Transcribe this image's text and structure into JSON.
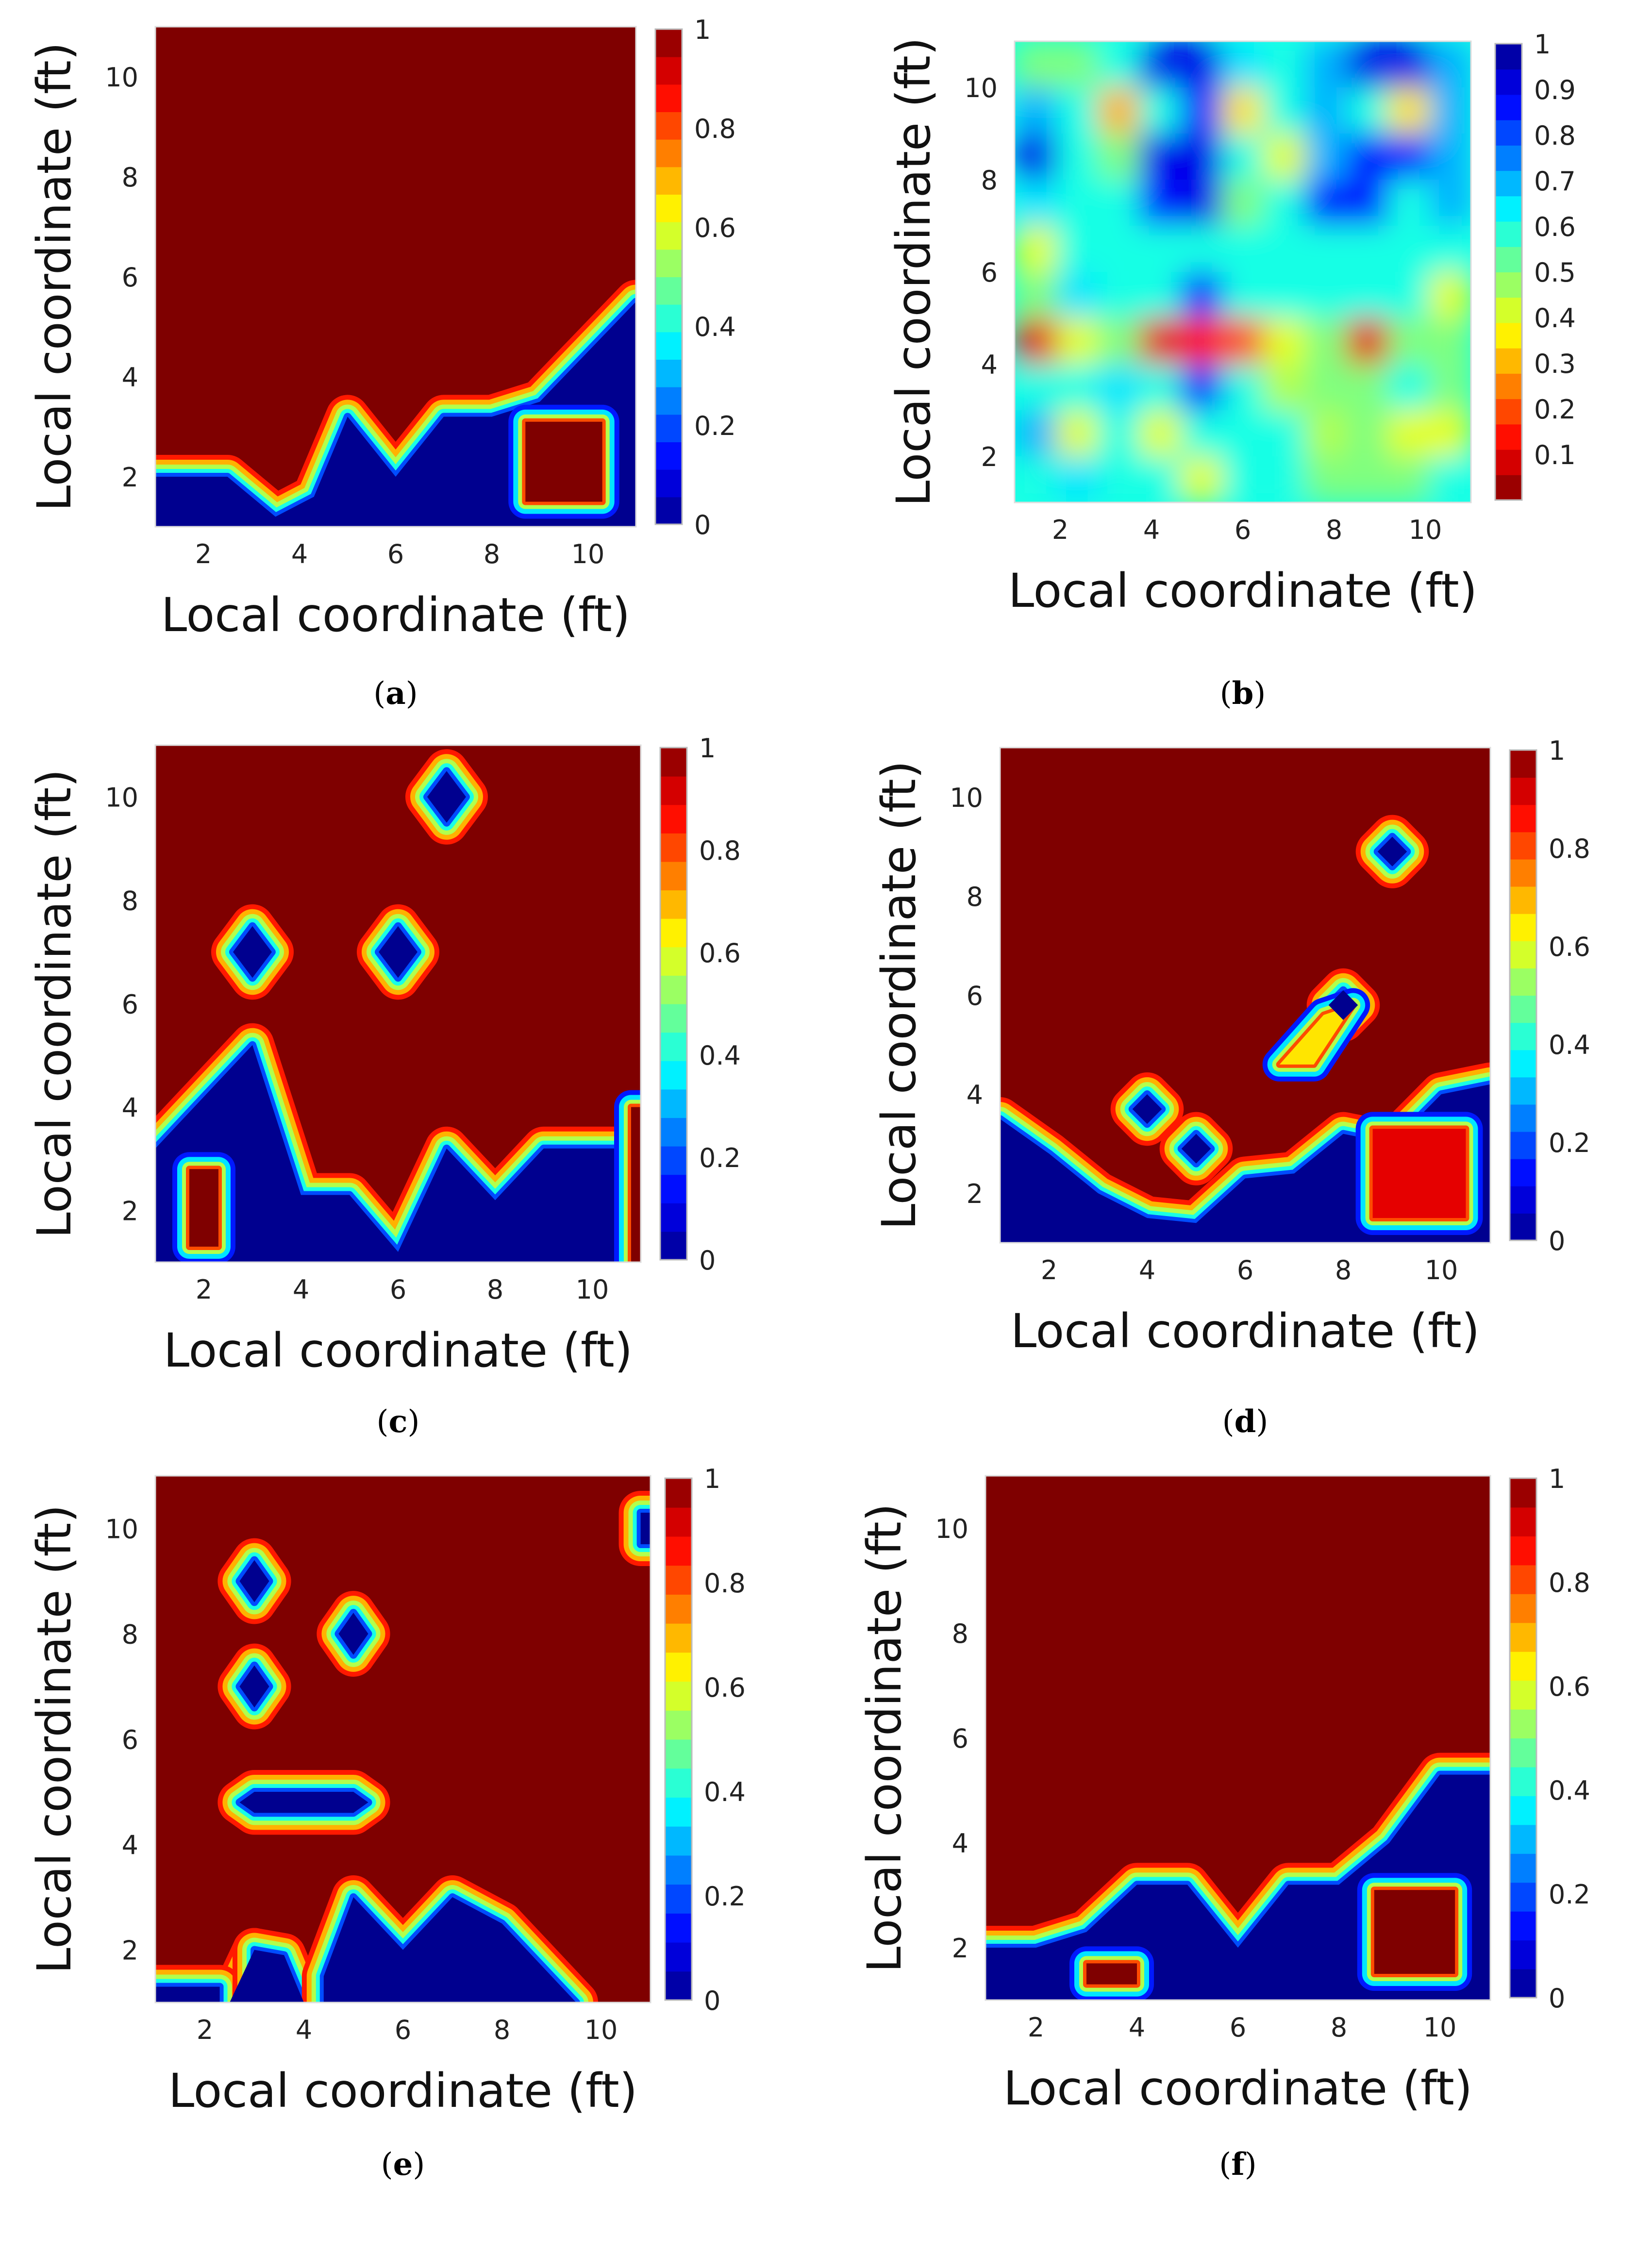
{
  "figure": {
    "panel_count": 6
  },
  "colormaps": {
    "jet": [
      "#00008f",
      "#0000ff",
      "#007fff",
      "#00ffff",
      "#7fff7f",
      "#ffff00",
      "#ff7f00",
      "#ff0000",
      "#7f0000"
    ],
    "jet_reversed": [
      "#7f0000",
      "#ff0000",
      "#ff7f00",
      "#ffff00",
      "#7fff7f",
      "#00ffff",
      "#007fff",
      "#0000ff",
      "#00008f"
    ]
  },
  "chart_data": [
    {
      "id": "a",
      "label": "(a)",
      "label_letter": "a",
      "type": "heatmap",
      "xlabel": "Local coordinate (ft)",
      "ylabel": "Local coordinate (ft)",
      "xlim": [
        1,
        11
      ],
      "ylim": [
        1,
        11
      ],
      "xticks": [
        2,
        4,
        6,
        8,
        10
      ],
      "yticks": [
        2,
        4,
        6,
        8,
        10
      ],
      "colormap": "jet",
      "colorbar_range": [
        0,
        1
      ],
      "colorbar_ticks": [
        0,
        0.2,
        0.4,
        0.6,
        0.8,
        1
      ],
      "colorbar_tick_labels": [
        "0",
        "0.2",
        "0.4",
        "0.6",
        "0.8",
        "1"
      ],
      "regions": [
        {
          "value": 0,
          "polygon": [
            [
              1,
              1
            ],
            [
              11,
              1
            ],
            [
              11,
              5.5
            ],
            [
              10,
              4.5
            ],
            [
              9,
              3.5
            ],
            [
              8,
              3.2
            ],
            [
              7,
              3.2
            ],
            [
              6,
              2
            ],
            [
              5,
              3.2
            ],
            [
              4.3,
              1.6
            ],
            [
              3.5,
              1.2
            ],
            [
              2.5,
              2
            ],
            [
              1,
              2
            ]
          ]
        },
        {
          "value": 1,
          "polygon": [
            [
              8.7,
              1.5
            ],
            [
              10.3,
              1.5
            ],
            [
              10.3,
              3.1
            ],
            [
              8.7,
              3.1
            ]
          ]
        }
      ]
    },
    {
      "id": "b",
      "label": "(b)",
      "label_letter": "b",
      "type": "heatmap",
      "xlabel": "Local coordinate (ft)",
      "ylabel": "Local coordinate (ft)",
      "xlim": [
        1,
        11
      ],
      "ylim": [
        1,
        11
      ],
      "xticks": [
        2,
        4,
        6,
        8,
        10
      ],
      "yticks": [
        2,
        4,
        6,
        8,
        10
      ],
      "colormap": "jet_reversed",
      "colorbar_range": [
        0,
        1
      ],
      "colorbar_ticks": [
        0.1,
        0.2,
        0.3,
        0.4,
        0.5,
        0.6,
        0.7,
        0.8,
        0.9,
        1
      ],
      "colorbar_tick_labels": [
        "0.1",
        "0.2",
        "0.3",
        "0.4",
        "0.5",
        "0.6",
        "0.7",
        "0.8",
        "0.9",
        "1"
      ],
      "grid_rows_top_to_bottom": [
        [
          0.5,
          0.5,
          0.6,
          0.9,
          0.9,
          0.65,
          0.6,
          0.7,
          0.9,
          0.9,
          0.7
        ],
        [
          0.7,
          0.6,
          0.3,
          0.6,
          0.85,
          0.35,
          0.6,
          0.7,
          0.6,
          0.35,
          0.7
        ],
        [
          0.9,
          0.6,
          0.5,
          0.9,
          0.9,
          0.6,
          0.4,
          0.7,
          0.85,
          0.85,
          0.7
        ],
        [
          0.65,
          0.6,
          0.6,
          0.85,
          0.9,
          0.5,
          0.6,
          0.85,
          0.85,
          0.6,
          0.7
        ],
        [
          0.4,
          0.6,
          0.6,
          0.6,
          0.6,
          0.6,
          0.6,
          0.6,
          0.6,
          0.6,
          0.6
        ],
        [
          0.5,
          0.65,
          0.6,
          0.6,
          0.85,
          0.6,
          0.6,
          0.6,
          0.6,
          0.6,
          0.4
        ],
        [
          0.1,
          0.4,
          0.5,
          0.1,
          0.15,
          0.2,
          0.4,
          0.5,
          0.1,
          0.5,
          0.5
        ],
        [
          0.6,
          0.6,
          0.65,
          0.6,
          0.85,
          0.6,
          0.45,
          0.5,
          0.5,
          0.6,
          0.5
        ],
        [
          0.7,
          0.4,
          0.6,
          0.4,
          0.6,
          0.6,
          0.6,
          0.45,
          0.5,
          0.4,
          0.4
        ],
        [
          0.6,
          0.65,
          0.6,
          0.6,
          0.4,
          0.6,
          0.6,
          0.5,
          0.5,
          0.5,
          0.6
        ]
      ]
    },
    {
      "id": "c",
      "label": "(c)",
      "label_letter": "c",
      "type": "heatmap",
      "xlabel": "Local coordinate (ft)",
      "ylabel": "Local coordinate (ft)",
      "xlim": [
        1,
        11
      ],
      "ylim": [
        1,
        11
      ],
      "xticks": [
        2,
        4,
        6,
        8,
        10
      ],
      "yticks": [
        2,
        4,
        6,
        8,
        10
      ],
      "colormap": "jet",
      "colorbar_range": [
        0,
        1
      ],
      "colorbar_ticks": [
        0,
        0.2,
        0.4,
        0.6,
        0.8,
        1
      ],
      "colorbar_tick_labels": [
        "0",
        "0.2",
        "0.4",
        "0.6",
        "0.8",
        "1"
      ],
      "regions": [
        {
          "value": 0,
          "polygon": [
            [
              1,
              1
            ],
            [
              10.8,
              1
            ],
            [
              10.8,
              3.2
            ],
            [
              10,
              3.2
            ],
            [
              9,
              3.2
            ],
            [
              8,
              2.2
            ],
            [
              7,
              3.2
            ],
            [
              6,
              1.2
            ],
            [
              5,
              2.3
            ],
            [
              4,
              2.3
            ],
            [
              3,
              5.2
            ],
            [
              1,
              3.2
            ]
          ]
        },
        {
          "value": 1,
          "polygon": [
            [
              1.7,
              1.3
            ],
            [
              2.3,
              1.3
            ],
            [
              2.3,
              2.8
            ],
            [
              1.7,
              2.8
            ]
          ]
        },
        {
          "value": 1,
          "polygon": [
            [
              10.8,
              1
            ],
            [
              11,
              1
            ],
            [
              11,
              4
            ],
            [
              10.8,
              4
            ]
          ]
        },
        {
          "value": 0,
          "polygon": [
            [
              7,
              9.5
            ],
            [
              7.4,
              10
            ],
            [
              7,
              10.5
            ],
            [
              6.6,
              10
            ]
          ]
        },
        {
          "value": 0,
          "polygon": [
            [
              3,
              6.5
            ],
            [
              3.4,
              7
            ],
            [
              3,
              7.5
            ],
            [
              2.6,
              7
            ]
          ]
        },
        {
          "value": 0,
          "polygon": [
            [
              6,
              6.5
            ],
            [
              6.4,
              7
            ],
            [
              6,
              7.5
            ],
            [
              5.6,
              7
            ]
          ]
        }
      ]
    },
    {
      "id": "d",
      "label": "(d)",
      "label_letter": "d",
      "type": "heatmap",
      "xlabel": "Local coordinate (ft)",
      "ylabel": "Local coordinate (ft)",
      "xlim": [
        1,
        11
      ],
      "ylim": [
        1,
        11
      ],
      "xticks": [
        2,
        4,
        6,
        8,
        10
      ],
      "yticks": [
        2,
        4,
        6,
        8,
        10
      ],
      "colormap": "jet",
      "colorbar_range": [
        0,
        1
      ],
      "colorbar_ticks": [
        0,
        0.2,
        0.4,
        0.6,
        0.8,
        1
      ],
      "colorbar_tick_labels": [
        "0",
        "0.2",
        "0.4",
        "0.6",
        "0.8",
        "1"
      ],
      "regions": [
        {
          "value": 0,
          "polygon": [
            [
              1,
              1
            ],
            [
              11,
              1
            ],
            [
              11,
              4.2
            ],
            [
              10,
              4
            ],
            [
              9,
              3
            ],
            [
              8,
              3.2
            ],
            [
              7,
              2.4
            ],
            [
              6,
              2.3
            ],
            [
              5,
              1.4
            ],
            [
              4,
              1.5
            ],
            [
              3,
              2
            ],
            [
              2,
              2.8
            ],
            [
              1,
              3.5
            ]
          ]
        },
        {
          "value": 0.9,
          "polygon": [
            [
              8.6,
              1.5
            ],
            [
              10.5,
              1.5
            ],
            [
              10.5,
              3.3
            ],
            [
              8.6,
              3.3
            ]
          ]
        },
        {
          "value": 0.65,
          "polygon": [
            [
              6.7,
              4.6
            ],
            [
              7.6,
              5.6
            ],
            [
              8.2,
              5.8
            ],
            [
              7.4,
              4.6
            ]
          ]
        },
        {
          "value": 0,
          "polygon": [
            [
              8,
              5.5
            ],
            [
              8.3,
              5.8
            ],
            [
              8,
              6.1
            ],
            [
              7.7,
              5.8
            ]
          ]
        },
        {
          "value": 0,
          "polygon": [
            [
              9,
              8.6
            ],
            [
              9.3,
              8.9
            ],
            [
              9,
              9.2
            ],
            [
              8.7,
              8.9
            ]
          ]
        },
        {
          "value": 0,
          "polygon": [
            [
              4,
              3.4
            ],
            [
              4.3,
              3.7
            ],
            [
              4,
              4
            ],
            [
              3.7,
              3.7
            ]
          ]
        },
        {
          "value": 0,
          "polygon": [
            [
              5,
              2.6
            ],
            [
              5.3,
              2.9
            ],
            [
              5,
              3.2
            ],
            [
              4.7,
              2.9
            ]
          ]
        }
      ]
    },
    {
      "id": "e",
      "label": "(e)",
      "label_letter": "e",
      "type": "heatmap",
      "xlabel": "Local coordinate (ft)",
      "ylabel": "Local coordinate (ft)",
      "xlim": [
        1,
        11
      ],
      "ylim": [
        1,
        11
      ],
      "xticks": [
        2,
        4,
        6,
        8,
        10
      ],
      "yticks": [
        2,
        4,
        6,
        8,
        10
      ],
      "colormap": "jet",
      "colorbar_range": [
        0,
        1
      ],
      "colorbar_ticks": [
        0,
        0.2,
        0.4,
        0.6,
        0.8,
        1
      ],
      "colorbar_tick_labels": [
        "0",
        "0.2",
        "0.4",
        "0.6",
        "0.8",
        "1"
      ],
      "regions": [
        {
          "value": 0,
          "polygon": [
            [
              1,
              1
            ],
            [
              2.5,
              1
            ],
            [
              3,
              2
            ],
            [
              3.5,
              1
            ],
            [
              1,
              1
            ]
          ]
        },
        {
          "value": 0,
          "polygon": [
            [
              1,
              1
            ],
            [
              2.3,
              1
            ],
            [
              2.3,
              1.3
            ],
            [
              1,
              1.3
            ]
          ]
        },
        {
          "value": 0,
          "polygon": [
            [
              3,
              1
            ],
            [
              4,
              1
            ],
            [
              3.6,
              1.9
            ],
            [
              3,
              2
            ]
          ]
        },
        {
          "value": 0,
          "polygon": [
            [
              4.4,
              1
            ],
            [
              9.5,
              1
            ],
            [
              8,
              2.5
            ],
            [
              7,
              3
            ],
            [
              6,
              2
            ],
            [
              5,
              3
            ],
            [
              4.4,
              1.5
            ]
          ]
        },
        {
          "value": 0,
          "polygon": [
            [
              3,
              8.6
            ],
            [
              3.3,
              9
            ],
            [
              3,
              9.4
            ],
            [
              2.7,
              9
            ]
          ]
        },
        {
          "value": 0,
          "polygon": [
            [
              5,
              7.6
            ],
            [
              5.3,
              8
            ],
            [
              5,
              8.4
            ],
            [
              4.7,
              8
            ]
          ]
        },
        {
          "value": 0,
          "polygon": [
            [
              3,
              6.6
            ],
            [
              3.3,
              7
            ],
            [
              3,
              7.4
            ],
            [
              2.7,
              7
            ]
          ]
        },
        {
          "value": 0,
          "polygon": [
            [
              3,
              4.6
            ],
            [
              5,
              4.6
            ],
            [
              5.3,
              4.8
            ],
            [
              5,
              5
            ],
            [
              3,
              5
            ],
            [
              2.7,
              4.8
            ]
          ]
        },
        {
          "value": 0,
          "polygon": [
            [
              10.8,
              9.7
            ],
            [
              11,
              9.7
            ],
            [
              11,
              10.3
            ],
            [
              10.8,
              10.3
            ]
          ]
        }
      ]
    },
    {
      "id": "f",
      "label": "(f)",
      "label_letter": "f",
      "type": "heatmap",
      "xlabel": "Local coordinate (ft)",
      "ylabel": "Local coordinate (ft)",
      "xlim": [
        1,
        11
      ],
      "ylim": [
        1,
        11
      ],
      "xticks": [
        2,
        4,
        6,
        8,
        10
      ],
      "yticks": [
        2,
        4,
        6,
        8,
        10
      ],
      "colormap": "jet",
      "colorbar_range": [
        0,
        1
      ],
      "colorbar_ticks": [
        0,
        0.2,
        0.4,
        0.6,
        0.8,
        1
      ],
      "colorbar_tick_labels": [
        "0",
        "0.2",
        "0.4",
        "0.6",
        "0.8",
        "1"
      ],
      "regions": [
        {
          "value": 0,
          "polygon": [
            [
              1,
              1
            ],
            [
              11,
              1
            ],
            [
              11,
              5.3
            ],
            [
              10,
              5.3
            ],
            [
              9,
              4
            ],
            [
              8,
              3.2
            ],
            [
              7,
              3.2
            ],
            [
              6,
              2
            ],
            [
              5,
              3.2
            ],
            [
              4,
              3.2
            ],
            [
              3,
              2.3
            ],
            [
              2,
              2
            ],
            [
              1,
              2
            ]
          ]
        },
        {
          "value": 1,
          "polygon": [
            [
              3,
              1.3
            ],
            [
              4,
              1.3
            ],
            [
              4,
              1.7
            ],
            [
              3,
              1.7
            ]
          ]
        },
        {
          "value": 1,
          "polygon": [
            [
              8.7,
              1.5
            ],
            [
              10.3,
              1.5
            ],
            [
              10.3,
              3.1
            ],
            [
              8.7,
              3.1
            ]
          ]
        }
      ]
    }
  ]
}
